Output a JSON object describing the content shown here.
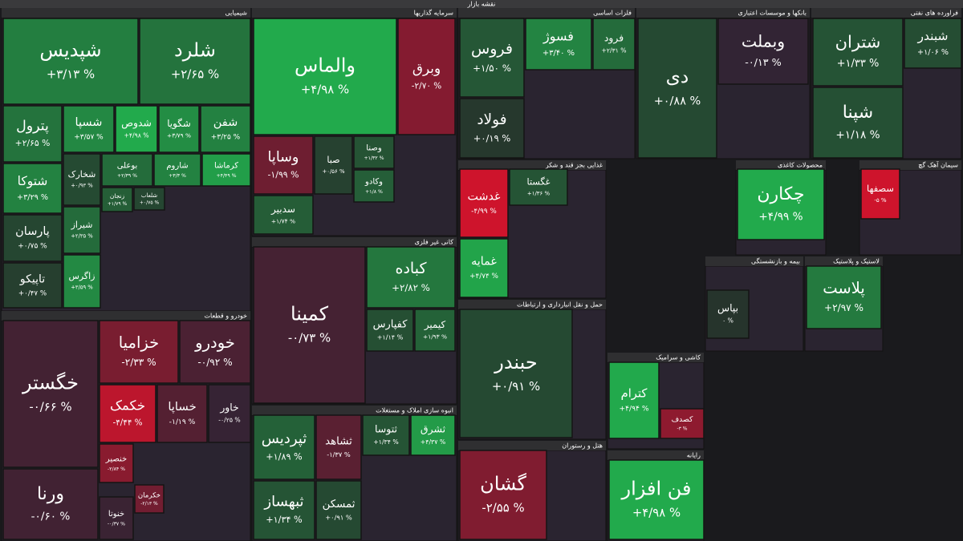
{
  "chart_data": {
    "type": "treemap",
    "title": "نقشه بازار",
    "sectors": [
      {
        "name": "شیمیایی",
        "tiles": [
          {
            "name": "شپدیس",
            "value": 3.13,
            "value_label": "+۳/۱۳ %"
          },
          {
            "name": "شلرد",
            "value": 2.65,
            "value_label": "+۲/۶۵ %"
          },
          {
            "name": "پترول",
            "value": 2.65,
            "value_label": "+۲/۶۵ %"
          },
          {
            "name": "شسپا",
            "value": 3.57,
            "value_label": "+۳/۵۷ %"
          },
          {
            "name": "شدوص",
            "value": 4.98,
            "value_label": "+۴/۹۸ %"
          },
          {
            "name": "شگویا",
            "value": 3.79,
            "value_label": "+۳/۷۹ %"
          },
          {
            "name": "شفن",
            "value": 3.25,
            "value_label": "+۳/۲۵ %"
          },
          {
            "name": "شتوکا",
            "value": 3.29,
            "value_label": "+۳/۲۹ %"
          },
          {
            "name": "شخارک",
            "value": 0.93,
            "value_label": "+۰/۹۳ %"
          },
          {
            "name": "بوعلی",
            "value": 2.39,
            "value_label": "+۲/۳۹ %"
          },
          {
            "name": "شاروم",
            "value": 3.3,
            "value_label": "+۳/۳ %"
          },
          {
            "name": "کرماشا",
            "value": 4.49,
            "value_label": "+۴/۴۹ %"
          },
          {
            "name": "پارسان",
            "value": 0.75,
            "value_label": "+۰/۷۵ %"
          },
          {
            "name": "شیراز",
            "value": 2.35,
            "value_label": "+۲/۳۵ %"
          },
          {
            "name": "تاپیکو",
            "value": 0.47,
            "value_label": "+۰/۴۷ %"
          },
          {
            "name": "زاگرس",
            "value": 3.59,
            "value_label": "+۳/۵۹ %"
          },
          {
            "name": "زنجان",
            "value": 1.79,
            "value_label": "+۱/۷۹ %"
          },
          {
            "name": "شلعاب",
            "value": 0.75,
            "value_label": "+۰/۷۵ %"
          }
        ]
      },
      {
        "name": "خودرو و قطعات",
        "tiles": [
          {
            "name": "خگستر",
            "value": -0.66,
            "value_label": "-۰/۶۶ %"
          },
          {
            "name": "ورنا",
            "value": -0.6,
            "value_label": "-۰/۶۰ %"
          },
          {
            "name": "خزامیا",
            "value": -2.33,
            "value_label": "-۲/۳۳ %"
          },
          {
            "name": "خودرو",
            "value": -0.92,
            "value_label": "-۰/۹۲ %"
          },
          {
            "name": "خکمک",
            "value": -4.44,
            "value_label": "-۴/۴۴ %"
          },
          {
            "name": "خساپا",
            "value": -1.19,
            "value_label": "-۱/۱۹ %"
          },
          {
            "name": "خاور",
            "value": -0.25,
            "value_label": "-۰/۲۵ %"
          },
          {
            "name": "خنصیر",
            "value": -2.84,
            "value_label": "-۲/۸۴ %"
          },
          {
            "name": "خنوتا",
            "value": -0.37,
            "value_label": "-۰/۳۷ %"
          },
          {
            "name": "خکرمان",
            "value": -2.13,
            "value_label": "-۲/۱۳ %"
          }
        ]
      },
      {
        "name": "سرمایه گذاریها",
        "tiles": [
          {
            "name": "والماس",
            "value": 4.98,
            "value_label": "+۴/۹۸ %"
          },
          {
            "name": "وبرق",
            "value": -2.7,
            "value_label": "-۲/۷۰ %"
          },
          {
            "name": "وساپا",
            "value": -1.99,
            "value_label": "-۱/۹۹ %"
          },
          {
            "name": "صبا",
            "value": 0.56,
            "value_label": "+۰/۵۶ %"
          },
          {
            "name": "وصنا",
            "value": 1.32,
            "value_label": "+۱/۳۲ %"
          },
          {
            "name": "سدبیر",
            "value": 1.74,
            "value_label": "+۱/۷۴ %"
          },
          {
            "name": "وکادو",
            "value": 1.8,
            "value_label": "+۱/۸ %"
          }
        ]
      },
      {
        "name": "کانی غیر فلزی",
        "tiles": [
          {
            "name": "کمینا",
            "value": -0.73,
            "value_label": "-۰/۷۳ %"
          },
          {
            "name": "کباده",
            "value": 2.82,
            "value_label": "+۲/۸۲ %"
          },
          {
            "name": "کفپارس",
            "value": 1.14,
            "value_label": "+۱/۱۴ %"
          },
          {
            "name": "کیمیر",
            "value": 1.93,
            "value_label": "+۱/۹۳ %"
          }
        ]
      },
      {
        "name": "انبوه سازی املاک و مستغلات",
        "tiles": [
          {
            "name": "ثپردیس",
            "value": 1.89,
            "value_label": "+۱/۸۹ %"
          },
          {
            "name": "ثشاهد",
            "value": -1.37,
            "value_label": "-۱/۳۷ %"
          },
          {
            "name": "ثتوسا",
            "value": 1.34,
            "value_label": "+۱/۳۴ %"
          },
          {
            "name": "ثشرق",
            "value": 4.37,
            "value_label": "+۴/۳۷ %"
          },
          {
            "name": "ثبهساز",
            "value": 1.34,
            "value_label": "+۱/۳۴ %"
          },
          {
            "name": "ثمسکن",
            "value": 0.91,
            "value_label": "+۰/۹۱ %"
          }
        ]
      },
      {
        "name": "فلزات اساسی",
        "tiles": [
          {
            "name": "فروس",
            "value": 1.5,
            "value_label": "+۱/۵۰ %"
          },
          {
            "name": "فولاد",
            "value": 0.19,
            "value_label": "+۰/۱۹ %"
          },
          {
            "name": "فسوژ",
            "value": 3.4,
            "value_label": "+۳/۴۰ %"
          },
          {
            "name": "فرود",
            "value": 2.31,
            "value_label": "+۲/۳۱ %"
          }
        ]
      },
      {
        "name": "بانکها و موسسات اعتباری",
        "tiles": [
          {
            "name": "دی",
            "value": 0.88,
            "value_label": "+۰/۸۸ %"
          },
          {
            "name": "وبملت",
            "value": -0.13,
            "value_label": "-۰/۱۳ %"
          }
        ]
      },
      {
        "name": "فراورده های نفتی",
        "tiles": [
          {
            "name": "شتران",
            "value": 1.33,
            "value_label": "+۱/۳۳ %"
          },
          {
            "name": "شپنا",
            "value": 1.18,
            "value_label": "+۱/۱۸ %"
          },
          {
            "name": "شبندر",
            "value": 1.06,
            "value_label": "+۱/۰۶ %"
          }
        ]
      },
      {
        "name": "غذایی بجز قند و شکر",
        "tiles": [
          {
            "name": "غدشت",
            "value": -4.99,
            "value_label": "-۴/۹۹ %"
          },
          {
            "name": "غمایه",
            "value": 4.74,
            "value_label": "+۴/۷۴ %"
          },
          {
            "name": "غگستا",
            "value": 1.36,
            "value_label": "+۱/۳۶ %"
          }
        ]
      },
      {
        "name": "حمل و نقل انبارداری و ارتباطات",
        "tiles": [
          {
            "name": "حبندر",
            "value": 0.91,
            "value_label": "+۰/۹۱ %"
          }
        ]
      },
      {
        "name": "هتل و رستوران",
        "tiles": [
          {
            "name": "گشان",
            "value": -2.55,
            "value_label": "-۲/۵۵ %"
          }
        ]
      },
      {
        "name": "محصولات کاغذی",
        "tiles": [
          {
            "name": "چکارن",
            "value": 4.99,
            "value_label": "+۴/۹۹ %"
          }
        ]
      },
      {
        "name": "سیمان آهک گچ",
        "tiles": [
          {
            "name": "سصفها",
            "value": -5,
            "value_label": "-۵ %"
          }
        ]
      },
      {
        "name": "لاستیک و پلاستیک",
        "tiles": [
          {
            "name": "پلاست",
            "value": 2.97,
            "value_label": "+۲/۹۷ %"
          }
        ]
      },
      {
        "name": "بیمه و بازنشستگی",
        "tiles": [
          {
            "name": "بپاس",
            "value": 0,
            "value_label": "۰ %"
          }
        ]
      },
      {
        "name": "کاشی و سرامیک",
        "tiles": [
          {
            "name": "کترام",
            "value": 4.94,
            "value_label": "+۴/۹۴ %"
          },
          {
            "name": "کصدف",
            "value": -3,
            "value_label": "-۳ %"
          }
        ]
      },
      {
        "name": "رایانه",
        "tiles": [
          {
            "name": "فن افزار",
            "value": 4.98,
            "value_label": "+۴/۹۸ %"
          }
        ]
      }
    ]
  }
}
